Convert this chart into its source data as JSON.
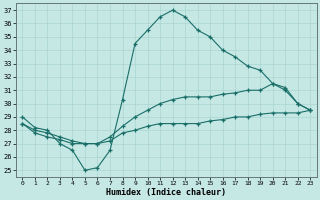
{
  "xlabel": "Humidex (Indice chaleur)",
  "xlim": [
    -0.5,
    23.5
  ],
  "ylim": [
    24.5,
    37.5
  ],
  "xticks": [
    0,
    1,
    2,
    3,
    4,
    5,
    6,
    7,
    8,
    9,
    10,
    11,
    12,
    13,
    14,
    15,
    16,
    17,
    18,
    19,
    20,
    21,
    22,
    23
  ],
  "yticks": [
    25,
    26,
    27,
    28,
    29,
    30,
    31,
    32,
    33,
    34,
    35,
    36,
    37
  ],
  "bg_color": "#c5e8e5",
  "line_color": "#1a6e68",
  "grid_color": "#aad4d0",
  "line1_x": [
    0,
    1,
    2,
    3,
    4,
    5,
    6,
    7,
    8,
    9,
    10,
    11,
    12,
    13,
    14,
    15,
    16,
    17,
    18,
    19,
    20,
    21,
    22,
    23
  ],
  "line1_y": [
    29.0,
    28.2,
    28.0,
    27.0,
    26.5,
    25.0,
    25.2,
    26.5,
    30.3,
    34.5,
    35.5,
    36.5,
    37.0,
    36.5,
    35.5,
    35.0,
    34.0,
    33.5,
    32.8,
    32.5,
    31.5,
    31.0,
    30.0,
    29.5
  ],
  "line2_x": [
    0,
    1,
    2,
    3,
    4,
    5,
    6,
    7,
    8,
    9,
    10,
    11,
    12,
    13,
    14,
    15,
    16,
    17,
    18,
    19,
    20,
    21,
    22,
    23
  ],
  "line2_y": [
    28.5,
    28.0,
    27.8,
    27.5,
    27.2,
    27.0,
    27.0,
    27.5,
    28.3,
    29.0,
    29.5,
    30.0,
    30.3,
    30.5,
    30.5,
    30.5,
    30.7,
    30.8,
    31.0,
    31.0,
    31.5,
    31.2,
    30.0,
    29.5
  ],
  "line3_x": [
    0,
    1,
    2,
    3,
    4,
    5,
    6,
    7,
    8,
    9,
    10,
    11,
    12,
    13,
    14,
    15,
    16,
    17,
    18,
    19,
    20,
    21,
    22,
    23
  ],
  "line3_y": [
    28.5,
    27.8,
    27.5,
    27.3,
    27.0,
    27.0,
    27.0,
    27.2,
    27.8,
    28.0,
    28.3,
    28.5,
    28.5,
    28.5,
    28.5,
    28.7,
    28.8,
    29.0,
    29.0,
    29.2,
    29.3,
    29.3,
    29.3,
    29.5
  ]
}
